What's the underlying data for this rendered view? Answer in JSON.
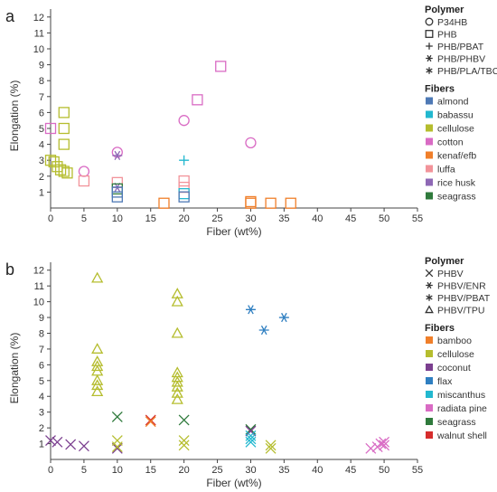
{
  "figure": {
    "panel_labels": [
      "a",
      "b"
    ]
  },
  "chart_data": [
    {
      "panel": "a",
      "type": "scatter",
      "xlabel": "Fiber (wt%)",
      "ylabel": "Elongation (%)",
      "xlim": [
        0,
        55
      ],
      "ylim": [
        0,
        12.5
      ],
      "xticks": [
        0,
        5,
        10,
        15,
        20,
        25,
        30,
        35,
        40,
        45,
        50,
        55
      ],
      "yticks": [
        1,
        2,
        3,
        4,
        5,
        6,
        7,
        8,
        9,
        10,
        11,
        12
      ],
      "grid": false,
      "legend": {
        "placement": "right",
        "polymer_title": "Polymer",
        "polymers": [
          {
            "name": "P34HB",
            "marker": "circle"
          },
          {
            "name": "PHB",
            "marker": "square"
          },
          {
            "name": "PHB/PBAT",
            "marker": "plus"
          },
          {
            "name": "PHB/PHBV",
            "marker": "asterisk"
          },
          {
            "name": "PHB/PLA/TBC",
            "marker": "star"
          }
        ],
        "fiber_title": "Fibers",
        "fibers": [
          {
            "name": "almond",
            "color": "#4e79b5"
          },
          {
            "name": "babassu",
            "color": "#22b8cf"
          },
          {
            "name": "cellulose",
            "color": "#b5bd2e"
          },
          {
            "name": "cotton",
            "color": "#d96bc4"
          },
          {
            "name": "kenaf/efb",
            "color": "#f07f2a"
          },
          {
            "name": "luffa",
            "color": "#f2939a"
          },
          {
            "name": "rice husk",
            "color": "#8e68b5"
          },
          {
            "name": "seagrass",
            "color": "#2f7a3c"
          }
        ]
      },
      "points": [
        {
          "x": 0,
          "y": 5.0,
          "polymer": "PHB",
          "fiber": "cotton"
        },
        {
          "x": 0,
          "y": 3.0,
          "polymer": "PHB",
          "fiber": "cellulose"
        },
        {
          "x": 0.5,
          "y": 2.9,
          "polymer": "PHB",
          "fiber": "cellulose"
        },
        {
          "x": 1,
          "y": 2.6,
          "polymer": "PHB",
          "fiber": "cellulose"
        },
        {
          "x": 1.5,
          "y": 2.4,
          "polymer": "PHB",
          "fiber": "cellulose"
        },
        {
          "x": 2,
          "y": 2.3,
          "polymer": "PHB",
          "fiber": "cellulose"
        },
        {
          "x": 2.5,
          "y": 2.2,
          "polymer": "PHB",
          "fiber": "cellulose"
        },
        {
          "x": 2,
          "y": 6.0,
          "polymer": "PHB",
          "fiber": "cellulose"
        },
        {
          "x": 2,
          "y": 5.0,
          "polymer": "PHB",
          "fiber": "cellulose"
        },
        {
          "x": 2,
          "y": 4.0,
          "polymer": "PHB",
          "fiber": "cellulose"
        },
        {
          "x": 5,
          "y": 2.3,
          "polymer": "P34HB",
          "fiber": "cotton"
        },
        {
          "x": 5,
          "y": 1.7,
          "polymer": "PHB",
          "fiber": "luffa"
        },
        {
          "x": 10,
          "y": 3.5,
          "polymer": "P34HB",
          "fiber": "cotton"
        },
        {
          "x": 10,
          "y": 3.3,
          "polymer": "PHB/PHBV",
          "fiber": "rice husk"
        },
        {
          "x": 10,
          "y": 1.6,
          "polymer": "PHB",
          "fiber": "luffa"
        },
        {
          "x": 10,
          "y": 1.3,
          "polymer": "PHB/PHBV",
          "fiber": "rice husk"
        },
        {
          "x": 10,
          "y": 1.2,
          "polymer": "PHB",
          "fiber": "seagrass"
        },
        {
          "x": 10,
          "y": 1.0,
          "polymer": "PHB",
          "fiber": "almond"
        },
        {
          "x": 10,
          "y": 0.7,
          "polymer": "PHB",
          "fiber": "almond"
        },
        {
          "x": 17,
          "y": 0.3,
          "polymer": "PHB",
          "fiber": "kenaf/efb"
        },
        {
          "x": 20,
          "y": 5.5,
          "polymer": "P34HB",
          "fiber": "cotton"
        },
        {
          "x": 20,
          "y": 3.0,
          "polymer": "PHB/PBAT",
          "fiber": "babassu"
        },
        {
          "x": 20,
          "y": 1.7,
          "polymer": "PHB",
          "fiber": "luffa"
        },
        {
          "x": 20,
          "y": 1.3,
          "polymer": "PHB",
          "fiber": "luffa"
        },
        {
          "x": 20,
          "y": 0.9,
          "polymer": "PHB",
          "fiber": "babassu"
        },
        {
          "x": 20,
          "y": 0.7,
          "polymer": "PHB",
          "fiber": "almond"
        },
        {
          "x": 22,
          "y": 6.8,
          "polymer": "PHB",
          "fiber": "cotton"
        },
        {
          "x": 25.5,
          "y": 8.9,
          "polymer": "PHB",
          "fiber": "cotton"
        },
        {
          "x": 30,
          "y": 4.1,
          "polymer": "P34HB",
          "fiber": "cotton"
        },
        {
          "x": 30,
          "y": 0.4,
          "polymer": "PHB",
          "fiber": "kenaf/efb"
        },
        {
          "x": 30,
          "y": 0.3,
          "polymer": "PHB",
          "fiber": "kenaf/efb"
        },
        {
          "x": 33,
          "y": 0.3,
          "polymer": "PHB",
          "fiber": "kenaf/efb"
        },
        {
          "x": 36,
          "y": 0.3,
          "polymer": "PHB",
          "fiber": "kenaf/efb"
        }
      ]
    },
    {
      "panel": "b",
      "type": "scatter",
      "xlabel": "Fiber (wt%)",
      "ylabel": "Elongation (%)",
      "xlim": [
        0,
        55
      ],
      "ylim": [
        0,
        12.5
      ],
      "xticks": [
        0,
        5,
        10,
        15,
        20,
        25,
        30,
        35,
        40,
        45,
        50,
        55
      ],
      "yticks": [
        1,
        2,
        3,
        4,
        5,
        6,
        7,
        8,
        9,
        10,
        11,
        12
      ],
      "grid": false,
      "legend": {
        "placement": "right",
        "polymer_title": "Polymer",
        "polymers": [
          {
            "name": "PHBV",
            "marker": "x"
          },
          {
            "name": "PHBV/ENR",
            "marker": "asterisk"
          },
          {
            "name": "PHBV/PBAT",
            "marker": "star"
          },
          {
            "name": "PHBV/TPU",
            "marker": "triangle"
          }
        ],
        "fiber_title": "Fibers",
        "fibers": [
          {
            "name": "bamboo",
            "color": "#f07f2a"
          },
          {
            "name": "cellulose",
            "color": "#b5bd2e"
          },
          {
            "name": "coconut",
            "color": "#7b3f8f"
          },
          {
            "name": "flax",
            "color": "#2f7fc1"
          },
          {
            "name": "miscanthus",
            "color": "#22b8cf"
          },
          {
            "name": "radiata pine",
            "color": "#d96bc4"
          },
          {
            "name": "seagrass",
            "color": "#2f7a3c"
          },
          {
            "name": "walnut shell",
            "color": "#d62d2d"
          }
        ]
      },
      "points": [
        {
          "x": 0,
          "y": 1.2,
          "polymer": "PHBV",
          "fiber": "coconut"
        },
        {
          "x": 1,
          "y": 1.1,
          "polymer": "PHBV",
          "fiber": "coconut"
        },
        {
          "x": 3,
          "y": 0.95,
          "polymer": "PHBV",
          "fiber": "coconut"
        },
        {
          "x": 5,
          "y": 0.85,
          "polymer": "PHBV",
          "fiber": "coconut"
        },
        {
          "x": 10,
          "y": 0.7,
          "polymer": "PHBV",
          "fiber": "coconut"
        },
        {
          "x": 7,
          "y": 11.5,
          "polymer": "PHBV/TPU",
          "fiber": "cellulose"
        },
        {
          "x": 7,
          "y": 7.0,
          "polymer": "PHBV/TPU",
          "fiber": "cellulose"
        },
        {
          "x": 7,
          "y": 6.2,
          "polymer": "PHBV/TPU",
          "fiber": "cellulose"
        },
        {
          "x": 7,
          "y": 5.9,
          "polymer": "PHBV/TPU",
          "fiber": "cellulose"
        },
        {
          "x": 7,
          "y": 5.6,
          "polymer": "PHBV/TPU",
          "fiber": "cellulose"
        },
        {
          "x": 7,
          "y": 5.0,
          "polymer": "PHBV/TPU",
          "fiber": "cellulose"
        },
        {
          "x": 7,
          "y": 4.7,
          "polymer": "PHBV/TPU",
          "fiber": "cellulose"
        },
        {
          "x": 7,
          "y": 4.3,
          "polymer": "PHBV/TPU",
          "fiber": "cellulose"
        },
        {
          "x": 10,
          "y": 2.7,
          "polymer": "PHBV",
          "fiber": "seagrass"
        },
        {
          "x": 10,
          "y": 1.2,
          "polymer": "PHBV",
          "fiber": "cellulose"
        },
        {
          "x": 10,
          "y": 0.8,
          "polymer": "PHBV",
          "fiber": "cellulose"
        },
        {
          "x": 15,
          "y": 2.5,
          "polymer": "PHBV",
          "fiber": "walnut shell"
        },
        {
          "x": 15,
          "y": 2.4,
          "polymer": "PHBV",
          "fiber": "bamboo"
        },
        {
          "x": 19,
          "y": 10.5,
          "polymer": "PHBV/TPU",
          "fiber": "cellulose"
        },
        {
          "x": 19,
          "y": 10.0,
          "polymer": "PHBV/TPU",
          "fiber": "cellulose"
        },
        {
          "x": 19,
          "y": 8.0,
          "polymer": "PHBV/TPU",
          "fiber": "cellulose"
        },
        {
          "x": 19,
          "y": 5.5,
          "polymer": "PHBV/TPU",
          "fiber": "cellulose"
        },
        {
          "x": 19,
          "y": 5.2,
          "polymer": "PHBV/TPU",
          "fiber": "cellulose"
        },
        {
          "x": 19,
          "y": 4.9,
          "polymer": "PHBV/TPU",
          "fiber": "cellulose"
        },
        {
          "x": 19,
          "y": 4.6,
          "polymer": "PHBV/TPU",
          "fiber": "cellulose"
        },
        {
          "x": 19,
          "y": 4.2,
          "polymer": "PHBV/TPU",
          "fiber": "cellulose"
        },
        {
          "x": 19,
          "y": 3.8,
          "polymer": "PHBV/TPU",
          "fiber": "cellulose"
        },
        {
          "x": 20,
          "y": 2.5,
          "polymer": "PHBV",
          "fiber": "seagrass"
        },
        {
          "x": 20,
          "y": 1.2,
          "polymer": "PHBV",
          "fiber": "cellulose"
        },
        {
          "x": 20,
          "y": 0.9,
          "polymer": "PHBV",
          "fiber": "cellulose"
        },
        {
          "x": 30,
          "y": 9.5,
          "polymer": "PHBV/ENR",
          "fiber": "flax"
        },
        {
          "x": 32,
          "y": 8.2,
          "polymer": "PHBV/ENR",
          "fiber": "flax"
        },
        {
          "x": 35,
          "y": 9.0,
          "polymer": "PHBV/ENR",
          "fiber": "flax"
        },
        {
          "x": 30,
          "y": 1.9,
          "polymer": "PHBV",
          "fiber": "seagrass"
        },
        {
          "x": 30,
          "y": 1.8,
          "polymer": "PHBV",
          "fiber": "coconut"
        },
        {
          "x": 30,
          "y": 1.5,
          "polymer": "PHBV",
          "fiber": "miscanthus"
        },
        {
          "x": 30,
          "y": 1.3,
          "polymer": "PHBV",
          "fiber": "miscanthus"
        },
        {
          "x": 30,
          "y": 1.1,
          "polymer": "PHBV",
          "fiber": "miscanthus"
        },
        {
          "x": 33,
          "y": 0.9,
          "polymer": "PHBV",
          "fiber": "cellulose"
        },
        {
          "x": 33,
          "y": 0.7,
          "polymer": "PHBV",
          "fiber": "cellulose"
        },
        {
          "x": 48,
          "y": 0.7,
          "polymer": "PHBV",
          "fiber": "radiata pine"
        },
        {
          "x": 49,
          "y": 0.8,
          "polymer": "PHBV",
          "fiber": "radiata pine"
        },
        {
          "x": 49.5,
          "y": 1.0,
          "polymer": "PHBV",
          "fiber": "radiata pine"
        },
        {
          "x": 50,
          "y": 1.1,
          "polymer": "PHBV",
          "fiber": "radiata pine"
        },
        {
          "x": 50,
          "y": 0.9,
          "polymer": "PHBV",
          "fiber": "radiata pine"
        }
      ]
    }
  ]
}
